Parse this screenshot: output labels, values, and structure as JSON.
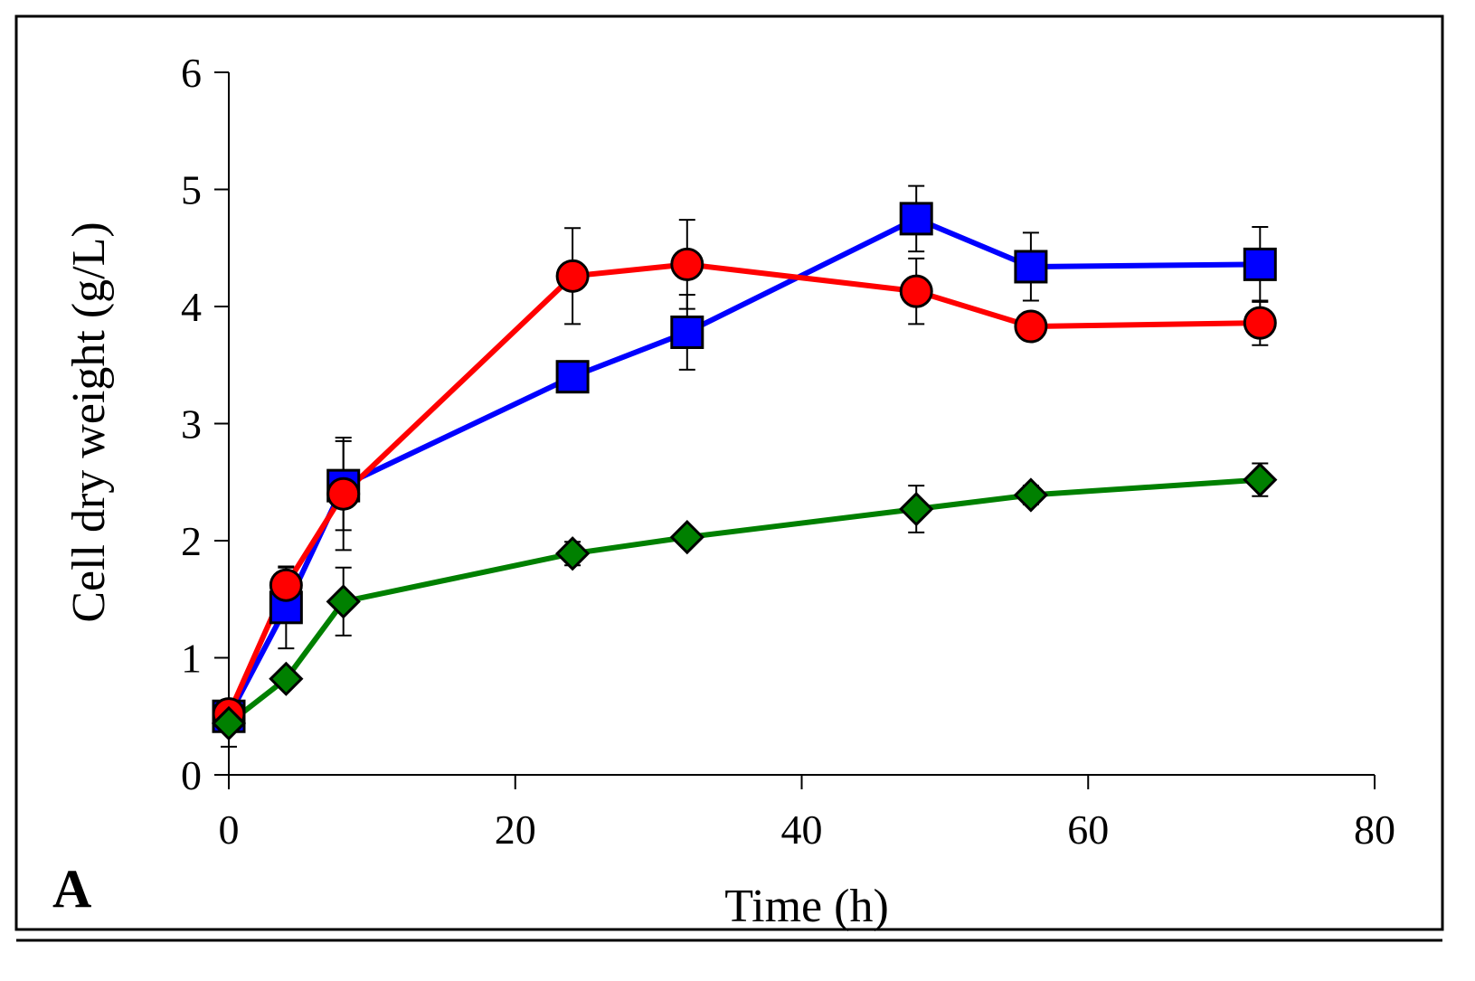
{
  "chart_data": {
    "type": "line",
    "panel_label": "A",
    "title": "",
    "xlabel": "Time (h)",
    "ylabel": "Cell dry weight (g/L)",
    "xlim": [
      0,
      80
    ],
    "ylim": [
      0,
      6
    ],
    "xticks": [
      0,
      20,
      40,
      60,
      80
    ],
    "yticks": [
      0,
      1,
      2,
      3,
      4,
      5,
      6
    ],
    "grid": false,
    "legend": "none",
    "series": [
      {
        "name": "red circles",
        "color": "#ff0000",
        "marker": "circle",
        "x": [
          0,
          4,
          8,
          24,
          32,
          48,
          56,
          72
        ],
        "values": [
          0.52,
          1.62,
          2.4,
          4.26,
          4.36,
          4.13,
          3.83,
          3.86
        ],
        "errors": [
          0.1,
          0.15,
          0.48,
          0.41,
          0.38,
          0.28,
          0.12,
          0.19
        ]
      },
      {
        "name": "blue squares",
        "color": "#0000ff",
        "marker": "square",
        "x": [
          0,
          4,
          8,
          24,
          32,
          48,
          56,
          72
        ],
        "values": [
          0.5,
          1.43,
          2.47,
          3.4,
          3.78,
          4.75,
          4.34,
          4.36
        ],
        "errors": [
          0.12,
          0.35,
          0.38,
          0.1,
          0.32,
          0.28,
          0.29,
          0.32
        ]
      },
      {
        "name": "green diamonds",
        "color": "#008000",
        "marker": "diamond",
        "x": [
          0,
          4,
          8,
          24,
          32,
          48,
          56,
          72
        ],
        "values": [
          0.44,
          0.82,
          1.48,
          1.89,
          2.03,
          2.27,
          2.39,
          2.52
        ],
        "errors": [
          0.2,
          0.05,
          0.29,
          0.1,
          0.07,
          0.2,
          0.08,
          0.14
        ]
      }
    ]
  }
}
